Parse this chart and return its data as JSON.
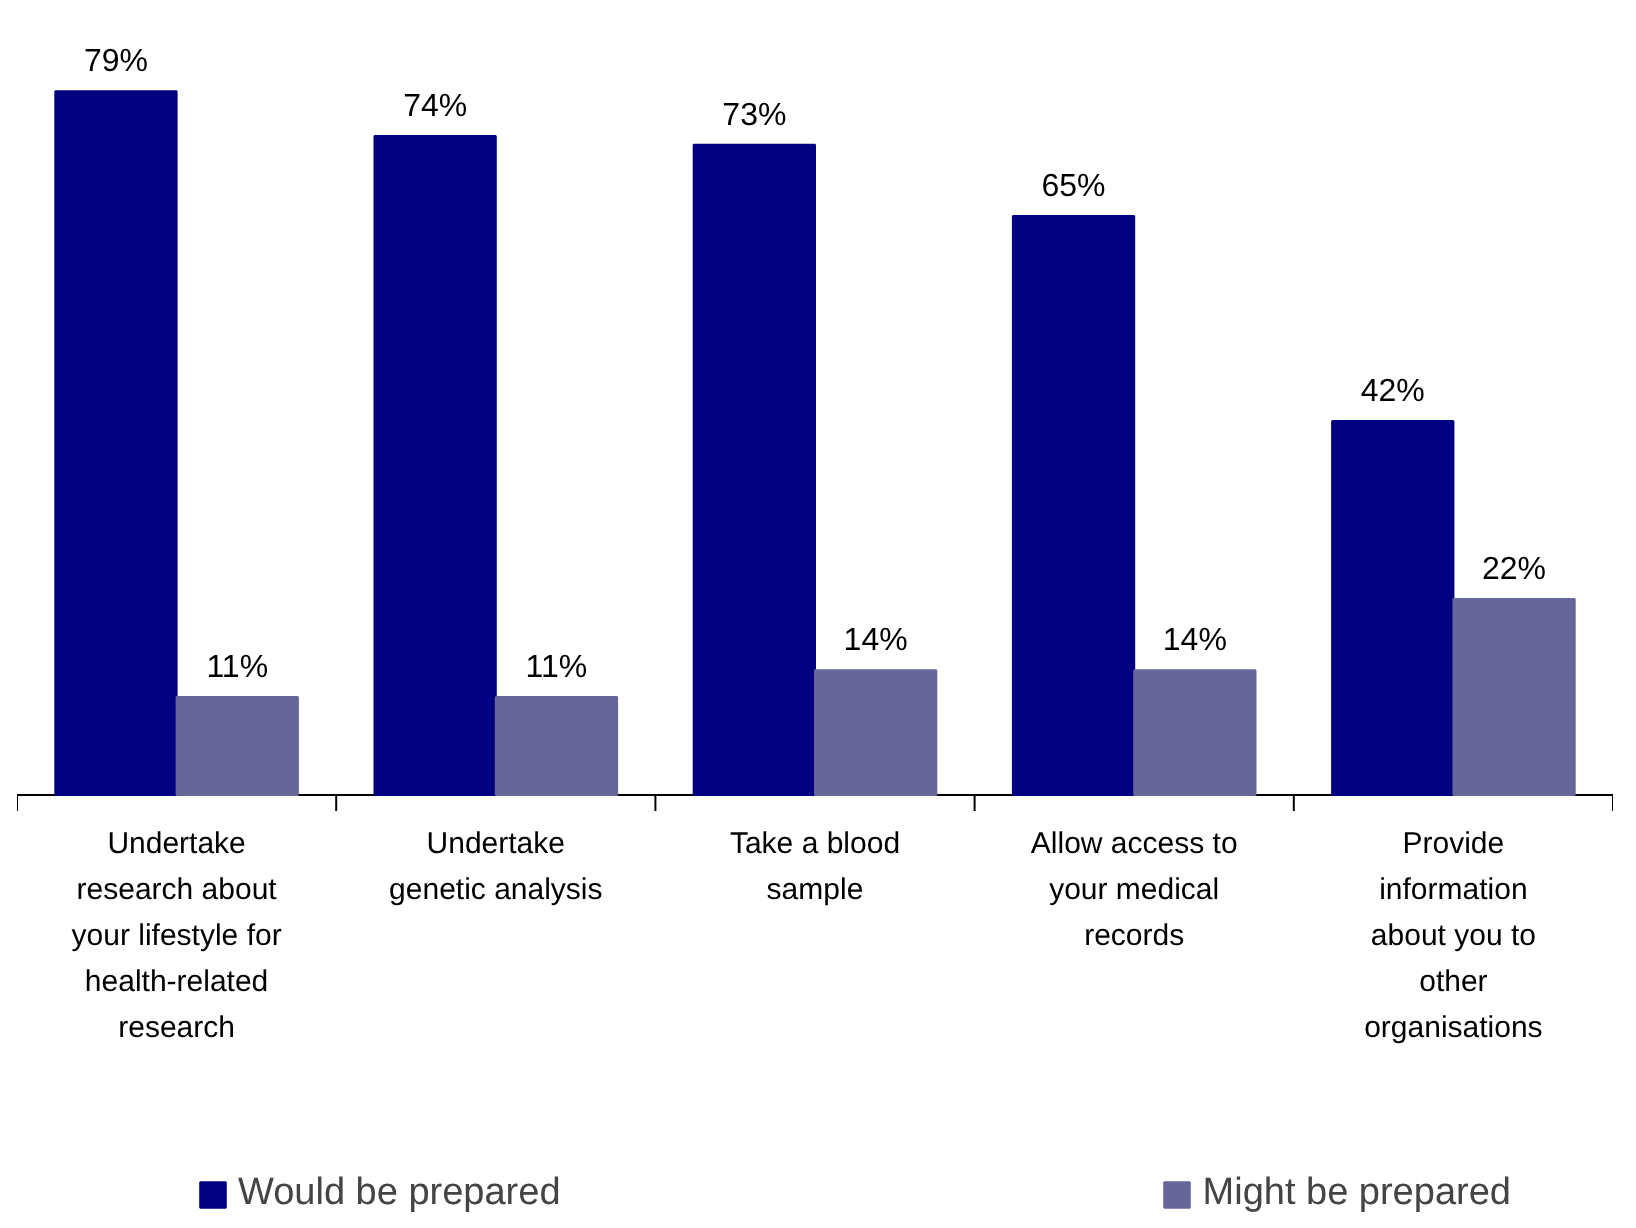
{
  "chart_data": {
    "type": "bar",
    "categories": [
      "Undertake\nresearch about\nyour lifestyle for\nhealth-related\nresearch",
      "Undertake\ngenetic analysis",
      "Take a blood\nsample",
      "Allow access to\nyour medical\nrecords",
      "Provide\ninformation\nabout you to\nother\norganisations"
    ],
    "series": [
      {
        "name": "Would be prepared",
        "color": "#000080",
        "values": [
          79,
          74,
          73,
          65,
          42
        ],
        "value_labels": [
          "79%",
          "74%",
          "73%",
          "65%",
          "42%"
        ]
      },
      {
        "name": "Might be prepared",
        "color": "#666699",
        "values": [
          11,
          11,
          14,
          14,
          22
        ],
        "value_labels": [
          "11%",
          "11%",
          "14%",
          "14%",
          "22%"
        ]
      }
    ],
    "legend": "bottom"
  }
}
